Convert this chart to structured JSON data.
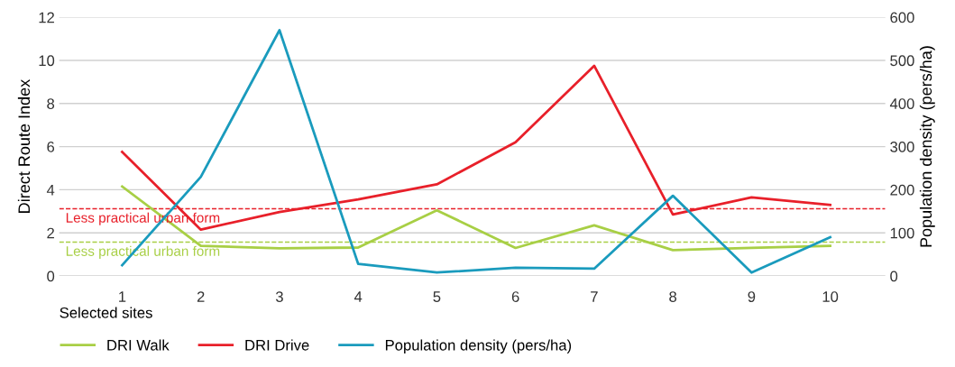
{
  "chart_data": {
    "type": "line",
    "xlabel": "Selected sites",
    "ylabel": "Direct Route Index",
    "y2label": "Population density (pers/ha)",
    "categories": [
      "1",
      "2",
      "3",
      "4",
      "5",
      "6",
      "7",
      "8",
      "9",
      "10"
    ],
    "series": [
      {
        "name": "DRI Walk",
        "color": "#a8cf45",
        "values": [
          4.15,
          1.4,
          1.28,
          1.32,
          3.05,
          1.3,
          2.35,
          1.2,
          1.3,
          1.4
        ]
      },
      {
        "name": "DRI Drive",
        "color": "#e8202a",
        "values": [
          5.75,
          2.15,
          2.97,
          3.55,
          4.25,
          6.2,
          9.75,
          2.85,
          3.65,
          3.3
        ]
      },
      {
        "name": "Population density (pers/ha)",
        "color": "#1a9bbd",
        "axis": "y2",
        "values": [
          25,
          230,
          570,
          28,
          8,
          19,
          17,
          186,
          8,
          90
        ]
      }
    ],
    "ylim": [
      0,
      12
    ],
    "yticks": [
      0,
      2,
      4,
      6,
      8,
      10,
      12
    ],
    "y2lim": [
      0,
      600
    ],
    "y2ticks": [
      0,
      100,
      200,
      300,
      400,
      500,
      600
    ],
    "ref_lines": [
      {
        "axis": "y",
        "value": 3.12,
        "label": "Less practical urban form",
        "color": "#e8202a",
        "line_style": "dashed"
      },
      {
        "axis": "y",
        "value": 1.57,
        "label": "Less practical urban form",
        "color": "#a8cf45",
        "line_style": "dashed"
      }
    ],
    "grid": "y",
    "legend": "bottom left",
    "marker": "none",
    "line_style": "solid"
  }
}
